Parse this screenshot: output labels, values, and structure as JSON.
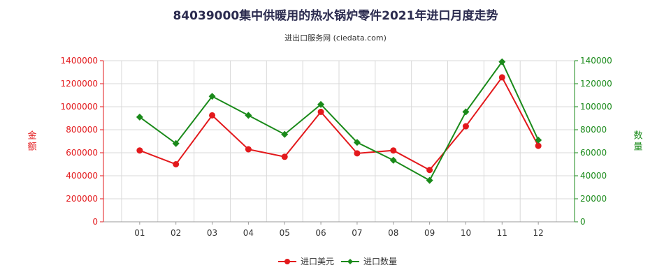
{
  "title": "84039000集中供暖用的热水锅炉零件2021年进口月度走势",
  "subtitle": "进出口服务网 (ciedata.com)",
  "chart_data": {
    "type": "line",
    "categories": [
      "01",
      "02",
      "03",
      "04",
      "05",
      "06",
      "07",
      "08",
      "09",
      "10",
      "11",
      "12"
    ],
    "series": [
      {
        "name": "进口美元",
        "axis": "left",
        "color": "#e3191c",
        "values": [
          620000,
          500000,
          925000,
          630000,
          565000,
          955000,
          595000,
          620000,
          450000,
          830000,
          1255000,
          660000
        ]
      },
      {
        "name": "进口数量",
        "axis": "right",
        "color": "#1a8a1a",
        "values": [
          91000,
          68000,
          109000,
          92500,
          76000,
          102000,
          69000,
          53500,
          36000,
          95500,
          139000,
          71000
        ]
      }
    ],
    "y_left": {
      "label": "金额",
      "ylim": [
        0,
        1400000
      ],
      "ticks": [
        "0",
        "200000",
        "400000",
        "600000",
        "800000",
        "1000000",
        "1200000",
        "1400000"
      ],
      "color": "#e3191c"
    },
    "y_right": {
      "label": "数量",
      "ylim": [
        0,
        140000
      ],
      "ticks": [
        "0",
        "20000",
        "40000",
        "60000",
        "80000",
        "100000",
        "120000",
        "140000"
      ],
      "color": "#1a8a1a"
    },
    "grid": true,
    "legend_placement": "bottom-center"
  }
}
